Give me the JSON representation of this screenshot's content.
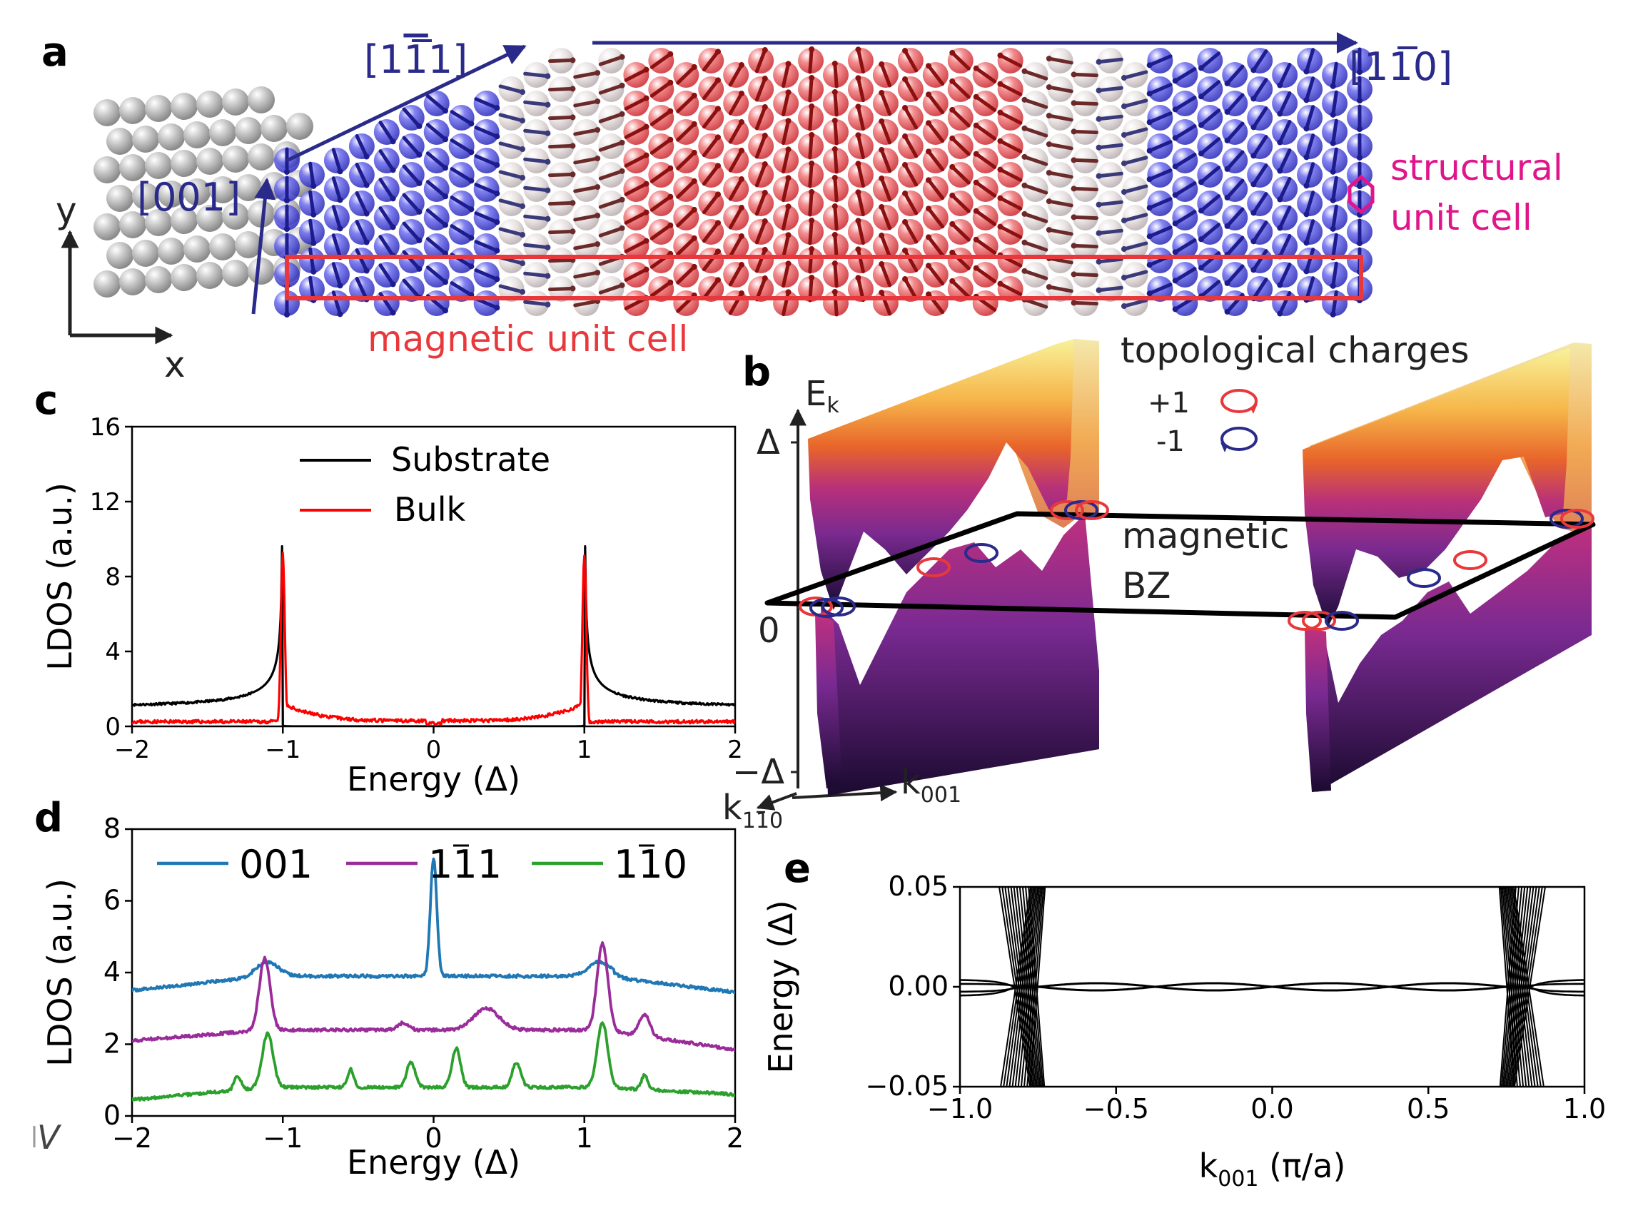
{
  "panel_labels": {
    "a": "a",
    "b": "b",
    "c": "c",
    "d": "d",
    "e": "e"
  },
  "panel_a": {
    "dir_111": "[1",
    "dir_111_bar": "1",
    "dir_111_end": "1]",
    "dir_110": "[1",
    "dir_110_bar": "1",
    "dir_110_end": "0]",
    "dir_001": "[001]",
    "axis_x": "x",
    "axis_y": "y",
    "magnetic_unit_cell": "magnetic unit cell",
    "structural_unit_cell_line1": "structural",
    "structural_unit_cell_line2": "unit cell",
    "colors": {
      "substrate": "#b5b5b5",
      "blue": "#3b3bd6",
      "red": "#e0393e",
      "arrow_blue": "#1c1c8c",
      "arrow_red": "#8b1111",
      "magenta": "#e0158c",
      "dir": "#2a2a8a"
    }
  },
  "panel_b": {
    "ylabel_main": "E",
    "ylabel_sub": "k",
    "tick_top": "Δ",
    "tick_zero": "0",
    "tick_bottom": "−Δ",
    "k001_main": "k",
    "k001_sub": "001",
    "k110_main": "k",
    "k110_sub_a": "1",
    "k110_sub_bar": "1",
    "k110_sub_b": "0",
    "topo_title": "topological charges",
    "topo_plus": "+1",
    "topo_minus": "-1",
    "bz_line1": "magnetic",
    "bz_line2": "BZ"
  },
  "stray_text": "V",
  "chart_data": [
    {
      "panel": "c",
      "type": "line",
      "title": "",
      "xlabel": "Energy (Δ)",
      "ylabel": "LDOS (a.u.)",
      "xlim": [
        -2,
        2
      ],
      "ylim": [
        0,
        16
      ],
      "xticks": [
        -2,
        -1,
        0,
        1,
        2
      ],
      "xtick_labels": [
        "−2",
        "−1",
        "0",
        "1",
        "2"
      ],
      "yticks": [
        0,
        4,
        8,
        12,
        16
      ],
      "ytick_labels": [
        "0",
        "4",
        "8",
        "12",
        "16"
      ],
      "legend": "top-center",
      "series": [
        {
          "name": "Substrate",
          "color": "#000000",
          "model": "bcs",
          "gap": 1.0,
          "broadening": 0.0009,
          "scale": 1.0,
          "tail": 0.3,
          "floor": 0.0,
          "noise": 0.0
        },
        {
          "name": "Bulk",
          "color": "#ff0000",
          "model": "bulk",
          "peak": 9.2,
          "width": 0.018,
          "background": 0.25,
          "ingap": 0.75,
          "noise": 0.18
        }
      ]
    },
    {
      "panel": "d",
      "type": "line",
      "title": "",
      "xlabel": "Energy (Δ)",
      "ylabel": "LDOS (a.u.)",
      "xlim": [
        -2,
        2
      ],
      "ylim": [
        0,
        8
      ],
      "xticks": [
        -2,
        -1,
        0,
        1,
        2
      ],
      "xtick_labels": [
        "−2",
        "−1",
        "0",
        "1",
        "2"
      ],
      "yticks": [
        0,
        2,
        4,
        6,
        8
      ],
      "ytick_labels": [
        "0",
        "2",
        "4",
        "6",
        "8"
      ],
      "legend": "top",
      "series": [
        {
          "name_main": "001",
          "name_bar": "",
          "name_end": "",
          "color": "#1f77b4",
          "base": 3.9,
          "peaks": [
            [
              0.0,
              3.3,
              0.03
            ],
            [
              -1.1,
              0.4,
              0.1
            ],
            [
              1.1,
              0.4,
              0.1
            ]
          ],
          "edge": [
            3.5,
            3.45
          ]
        },
        {
          "name_main": "1",
          "name_bar": "1",
          "name_end": "1",
          "color": "#9a2c9a",
          "base": 2.4,
          "peaks": [
            [
              -1.12,
              2.0,
              0.05
            ],
            [
              1.12,
              2.4,
              0.05
            ],
            [
              0.35,
              0.6,
              0.12
            ],
            [
              -0.2,
              0.2,
              0.05
            ],
            [
              1.4,
              0.6,
              0.05
            ]
          ],
          "edge": [
            2.1,
            1.85
          ]
        },
        {
          "name_main": "1",
          "name_bar": "1",
          "name_end": "0",
          "color": "#2ca02c",
          "base": 0.8,
          "peaks": [
            [
              -1.1,
              1.5,
              0.05
            ],
            [
              1.12,
              1.8,
              0.05
            ],
            [
              -0.15,
              0.7,
              0.04
            ],
            [
              0.15,
              1.1,
              0.04
            ],
            [
              -0.55,
              0.5,
              0.03
            ],
            [
              0.55,
              0.7,
              0.04
            ],
            [
              -1.3,
              0.4,
              0.03
            ],
            [
              1.4,
              0.4,
              0.03
            ]
          ],
          "edge": [
            0.45,
            0.6
          ]
        }
      ]
    },
    {
      "panel": "e",
      "type": "line",
      "title": "",
      "xlabel_main": "k",
      "xlabel_sub": "001",
      "xlabel_unit": " (π/a)",
      "ylabel": "Energy (Δ)",
      "xlim": [
        -1,
        1
      ],
      "ylim": [
        -0.05,
        0.05
      ],
      "xticks": [
        -1.0,
        -0.5,
        0.0,
        0.5,
        1.0
      ],
      "xtick_labels": [
        "−1.0",
        "−0.5",
        "0.0",
        "0.5",
        "1.0"
      ],
      "yticks": [
        -0.05,
        0.0,
        0.05
      ],
      "ytick_labels": [
        "−0.05",
        "0.00",
        "0.05"
      ],
      "band_cross_k": 0.79,
      "flat_band_amplitude": 0.0018,
      "color": "#000000"
    }
  ]
}
